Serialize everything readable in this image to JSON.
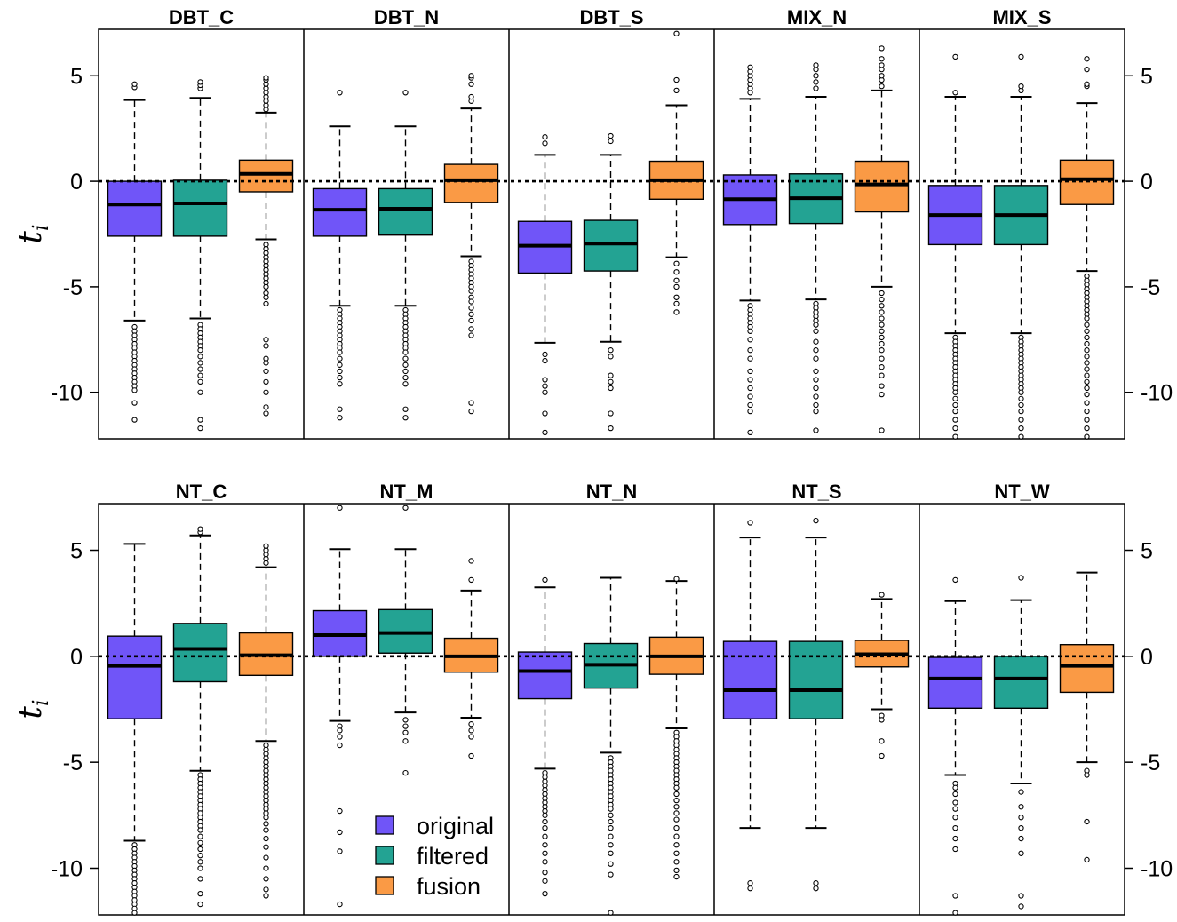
{
  "chart_data": {
    "type": "boxplot",
    "y_axis_label": "t",
    "y_axis_label_subscript": "i",
    "ylim": [
      -12.2,
      7.2
    ],
    "y_ticks": [
      5,
      0,
      -5,
      -10
    ],
    "reference_line": 0,
    "legend": {
      "position": "bottom-left of lower row",
      "entries": [
        {
          "name": "original",
          "color": "#7055F8"
        },
        {
          "name": "filtered",
          "color": "#23A393"
        },
        {
          "name": "fusion",
          "color": "#FA9A45"
        }
      ]
    },
    "series_colors": {
      "original": "#7055F8",
      "filtered": "#23A393",
      "fusion": "#FA9A45"
    },
    "panels": [
      {
        "title": "DBT_C",
        "boxes": [
          {
            "series": "original",
            "q1": -2.6,
            "median": -1.1,
            "q3": 0.0,
            "wlo": -6.6,
            "whi": 3.85,
            "outliers": [
              4.45,
              4.6,
              -6.9,
              -7.1,
              -7.3,
              -7.5,
              -7.7,
              -7.9,
              -8.1,
              -8.3,
              -8.5,
              -8.7,
              -8.9,
              -9.1,
              -9.3,
              -9.5,
              -9.7,
              -9.9,
              -10.5,
              -11.3
            ]
          },
          {
            "series": "filtered",
            "q1": -2.6,
            "median": -1.05,
            "q3": 0.05,
            "wlo": -6.5,
            "whi": 3.95,
            "outliers": [
              4.4,
              4.55,
              4.7,
              -6.8,
              -7.0,
              -7.2,
              -7.4,
              -7.6,
              -7.8,
              -8.0,
              -8.3,
              -8.6,
              -8.9,
              -9.2,
              -9.5,
              -10.0,
              -11.3,
              -11.7
            ]
          },
          {
            "series": "fusion",
            "q1": -0.5,
            "median": 0.35,
            "q3": 1.0,
            "wlo": -2.75,
            "whi": 3.25,
            "outliers": [
              3.4,
              3.6,
              3.8,
              4.0,
              4.2,
              4.4,
              4.6,
              4.8,
              4.9,
              -3.0,
              -3.2,
              -3.4,
              -3.6,
              -3.8,
              -4.0,
              -4.2,
              -4.4,
              -4.6,
              -4.8,
              -5.0,
              -5.3,
              -5.5,
              -5.8,
              -7.5,
              -7.8,
              -8.4,
              -8.6,
              -9.0,
              -9.5,
              -10.0,
              -10.7,
              -11.0
            ]
          }
        ]
      },
      {
        "title": "DBT_N",
        "boxes": [
          {
            "series": "original",
            "q1": -2.6,
            "median": -1.35,
            "q3": -0.35,
            "wlo": -5.9,
            "whi": 2.6,
            "outliers": [
              4.2,
              -6.1,
              -6.3,
              -6.5,
              -6.7,
              -6.9,
              -7.1,
              -7.3,
              -7.5,
              -7.7,
              -7.9,
              -8.1,
              -8.4,
              -8.7,
              -9.0,
              -9.3,
              -9.6,
              -10.8,
              -11.2
            ]
          },
          {
            "series": "filtered",
            "q1": -2.55,
            "median": -1.3,
            "q3": -0.35,
            "wlo": -5.9,
            "whi": 2.6,
            "outliers": [
              4.2,
              -6.1,
              -6.3,
              -6.5,
              -6.7,
              -6.9,
              -7.1,
              -7.3,
              -7.5,
              -7.7,
              -7.9,
              -8.1,
              -8.4,
              -8.7,
              -9.0,
              -9.3,
              -9.6,
              -10.8,
              -11.2
            ]
          },
          {
            "series": "fusion",
            "q1": -1.0,
            "median": 0.05,
            "q3": 0.8,
            "wlo": -3.55,
            "whi": 3.45,
            "outliers": [
              3.8,
              4.0,
              4.6,
              4.9,
              5.0,
              -3.8,
              -4.0,
              -4.2,
              -4.4,
              -4.6,
              -4.8,
              -5.0,
              -5.2,
              -5.5,
              -5.7,
              -6.0,
              -6.3,
              -6.6,
              -7.0,
              -7.3,
              -10.5,
              -10.9
            ]
          }
        ]
      },
      {
        "title": "DBT_S",
        "boxes": [
          {
            "series": "original",
            "q1": -4.35,
            "median": -3.05,
            "q3": -1.9,
            "wlo": -7.65,
            "whi": 1.25,
            "outliers": [
              1.8,
              2.1,
              -8.2,
              -8.5,
              -9.4,
              -9.7,
              -10.0,
              -11.0,
              -11.9
            ]
          },
          {
            "series": "filtered",
            "q1": -4.25,
            "median": -2.95,
            "q3": -1.85,
            "wlo": -7.6,
            "whi": 1.25,
            "outliers": [
              1.9,
              2.15,
              -8.0,
              -8.3,
              -9.2,
              -9.5,
              -9.8,
              -11.0,
              -11.7
            ]
          },
          {
            "series": "fusion",
            "q1": -0.85,
            "median": 0.05,
            "q3": 0.95,
            "wlo": -3.6,
            "whi": 3.6,
            "outliers": [
              4.3,
              4.8,
              7.0,
              -3.9,
              -4.3,
              -4.7,
              -5.0,
              -5.5,
              -5.8,
              -6.2
            ]
          }
        ]
      },
      {
        "title": "MIX_N",
        "boxes": [
          {
            "series": "original",
            "q1": -2.05,
            "median": -0.85,
            "q3": 0.3,
            "wlo": -5.65,
            "whi": 3.9,
            "outliers": [
              4.2,
              4.4,
              4.6,
              4.8,
              5.0,
              5.2,
              5.4,
              -5.9,
              -6.1,
              -6.3,
              -6.5,
              -6.7,
              -6.9,
              -7.1,
              -7.5,
              -8.0,
              -8.4,
              -9.0,
              -9.4,
              -9.8,
              -10.2,
              -10.6,
              -10.9,
              -11.9
            ]
          },
          {
            "series": "filtered",
            "q1": -2.0,
            "median": -0.8,
            "q3": 0.35,
            "wlo": -5.6,
            "whi": 4.0,
            "outliers": [
              4.4,
              4.7,
              5.0,
              5.3,
              5.5,
              -5.8,
              -6.0,
              -6.2,
              -6.4,
              -6.6,
              -6.8,
              -7.1,
              -7.6,
              -8.0,
              -8.4,
              -9.0,
              -9.4,
              -9.8,
              -10.2,
              -10.6,
              -10.9,
              -11.8
            ]
          },
          {
            "series": "fusion",
            "q1": -1.45,
            "median": -0.15,
            "q3": 0.95,
            "wlo": -5.0,
            "whi": 4.3,
            "outliers": [
              4.5,
              4.8,
              5.0,
              5.3,
              5.5,
              5.8,
              6.3,
              -5.3,
              -5.6,
              -5.9,
              -6.2,
              -6.5,
              -6.8,
              -7.1,
              -7.4,
              -7.7,
              -8.0,
              -8.4,
              -8.8,
              -9.2,
              -9.7,
              -10.1,
              -11.8
            ]
          }
        ]
      },
      {
        "title": "MIX_S",
        "boxes": [
          {
            "series": "original",
            "q1": -3.0,
            "median": -1.6,
            "q3": -0.2,
            "wlo": -7.2,
            "whi": 4.0,
            "outliers": [
              4.2,
              5.9,
              -7.4,
              -7.6,
              -7.8,
              -8.0,
              -8.2,
              -8.4,
              -8.6,
              -8.8,
              -9.0,
              -9.2,
              -9.4,
              -9.6,
              -9.8,
              -10.0,
              -10.3,
              -10.6,
              -10.9,
              -11.3,
              -11.7,
              -12.1
            ]
          },
          {
            "series": "filtered",
            "q1": -3.0,
            "median": -1.6,
            "q3": -0.2,
            "wlo": -7.2,
            "whi": 4.0,
            "outliers": [
              4.3,
              4.5,
              5.9,
              -7.4,
              -7.6,
              -7.8,
              -8.0,
              -8.2,
              -8.4,
              -8.6,
              -8.8,
              -9.0,
              -9.2,
              -9.4,
              -9.6,
              -9.8,
              -10.0,
              -10.3,
              -10.6,
              -10.9,
              -11.3,
              -11.7,
              -12.1
            ]
          },
          {
            "series": "fusion",
            "q1": -1.1,
            "median": 0.1,
            "q3": 1.0,
            "wlo": -4.25,
            "whi": 3.7,
            "outliers": [
              4.5,
              4.6,
              5.3,
              5.8,
              -4.5,
              -4.7,
              -4.9,
              -5.1,
              -5.3,
              -5.5,
              -5.7,
              -5.9,
              -6.1,
              -6.3,
              -6.5,
              -6.8,
              -7.1,
              -7.4,
              -7.7,
              -8.0,
              -8.3,
              -8.6,
              -8.9,
              -9.2,
              -9.5,
              -9.8,
              -10.1,
              -10.5,
              -10.9,
              -11.3,
              -11.7,
              -12.1
            ]
          }
        ]
      },
      {
        "title": "NT_C",
        "boxes": [
          {
            "series": "original",
            "q1": -2.95,
            "median": -0.45,
            "q3": 0.95,
            "wlo": -8.7,
            "whi": 5.3,
            "outliers": [
              -8.9,
              -9.1,
              -9.3,
              -9.5,
              -9.7,
              -9.9,
              -10.1,
              -10.3,
              -10.5,
              -10.7,
              -10.9,
              -11.1,
              -11.3,
              -11.5,
              -11.7,
              -11.9,
              -12.1
            ]
          },
          {
            "series": "filtered",
            "q1": -1.2,
            "median": 0.35,
            "q3": 1.55,
            "wlo": -5.4,
            "whi": 5.7,
            "outliers": [
              5.85,
              6.0,
              -5.6,
              -5.8,
              -6.0,
              -6.2,
              -6.4,
              -6.6,
              -6.8,
              -7.0,
              -7.2,
              -7.4,
              -7.6,
              -7.8,
              -8.0,
              -8.2,
              -8.5,
              -8.8,
              -9.1,
              -9.4,
              -9.7,
              -10.0,
              -10.5,
              -11.2,
              -11.7
            ]
          },
          {
            "series": "fusion",
            "q1": -0.9,
            "median": 0.05,
            "q3": 1.1,
            "wlo": -4.0,
            "whi": 4.2,
            "outliers": [
              4.4,
              4.6,
              4.8,
              5.0,
              5.2,
              -4.2,
              -4.4,
              -4.6,
              -4.8,
              -5.0,
              -5.2,
              -5.4,
              -5.6,
              -5.8,
              -6.0,
              -6.2,
              -6.4,
              -6.6,
              -6.8,
              -7.0,
              -7.2,
              -7.4,
              -7.6,
              -7.9,
              -8.2,
              -8.6,
              -9.0,
              -9.5,
              -10.0,
              -10.5,
              -11.0,
              -11.3
            ]
          }
        ]
      },
      {
        "title": "NT_M",
        "boxes": [
          {
            "series": "original",
            "q1": 0.0,
            "median": 1.0,
            "q3": 2.15,
            "wlo": -3.05,
            "whi": 5.05,
            "outliers": [
              7.0,
              -3.3,
              -3.5,
              -3.8,
              -4.2,
              -7.3,
              -8.3,
              -9.2,
              -11.7
            ]
          },
          {
            "series": "filtered",
            "q1": 0.15,
            "median": 1.1,
            "q3": 2.2,
            "wlo": -2.65,
            "whi": 5.05,
            "outliers": [
              7.0,
              -3.0,
              -3.3,
              -3.6,
              -4.0,
              -5.5
            ]
          },
          {
            "series": "fusion",
            "q1": -0.75,
            "median": 0.0,
            "q3": 0.85,
            "wlo": -2.9,
            "whi": 3.1,
            "outliers": [
              3.6,
              4.5,
              -3.2,
              -3.5,
              -3.8,
              -4.7
            ]
          }
        ]
      },
      {
        "title": "NT_N",
        "boxes": [
          {
            "series": "original",
            "q1": -2.0,
            "median": -0.7,
            "q3": 0.2,
            "wlo": -5.3,
            "whi": 3.25,
            "outliers": [
              3.6,
              -5.5,
              -5.7,
              -5.9,
              -6.1,
              -6.3,
              -6.5,
              -6.7,
              -6.9,
              -7.1,
              -7.3,
              -7.5,
              -7.8,
              -8.1,
              -8.5,
              -8.9,
              -9.3,
              -9.7,
              -10.2,
              -10.6,
              -11.2
            ]
          },
          {
            "series": "filtered",
            "q1": -1.5,
            "median": -0.4,
            "q3": 0.6,
            "wlo": -4.55,
            "whi": 3.7,
            "outliers": [
              -4.8,
              -5.0,
              -5.2,
              -5.4,
              -5.6,
              -5.8,
              -6.0,
              -6.2,
              -6.4,
              -6.6,
              -6.8,
              -7.0,
              -7.2,
              -7.5,
              -7.8,
              -8.1,
              -8.5,
              -8.9,
              -9.3,
              -9.8,
              -10.3,
              -12.1
            ]
          },
          {
            "series": "fusion",
            "q1": -0.85,
            "median": 0.0,
            "q3": 0.9,
            "wlo": -3.4,
            "whi": 3.55,
            "outliers": [
              3.65,
              -3.6,
              -3.8,
              -4.0,
              -4.2,
              -4.4,
              -4.6,
              -4.8,
              -5.0,
              -5.2,
              -5.4,
              -5.6,
              -5.8,
              -6.0,
              -6.2,
              -6.5,
              -6.8,
              -7.1,
              -7.4,
              -7.7,
              -8.1,
              -8.5,
              -8.9,
              -9.3,
              -9.7,
              -10.1,
              -10.4
            ]
          }
        ]
      },
      {
        "title": "NT_S",
        "boxes": [
          {
            "series": "original",
            "q1": -2.95,
            "median": -1.6,
            "q3": 0.7,
            "wlo": -8.1,
            "whi": 5.6,
            "outliers": [
              6.3,
              -10.7,
              -10.95
            ]
          },
          {
            "series": "filtered",
            "q1": -2.95,
            "median": -1.6,
            "q3": 0.7,
            "wlo": -8.1,
            "whi": 5.6,
            "outliers": [
              6.4,
              -10.7,
              -10.95
            ]
          },
          {
            "series": "fusion",
            "q1": -0.5,
            "median": 0.1,
            "q3": 0.75,
            "wlo": -2.5,
            "whi": 2.7,
            "outliers": [
              2.9,
              -2.8,
              -3.0,
              -4.0,
              -4.7
            ]
          }
        ]
      },
      {
        "title": "NT_W",
        "boxes": [
          {
            "series": "original",
            "q1": -2.45,
            "median": -1.05,
            "q3": -0.05,
            "wlo": -5.6,
            "whi": 2.6,
            "outliers": [
              3.6,
              -6.0,
              -6.2,
              -6.5,
              -6.9,
              -7.2,
              -7.6,
              -8.1,
              -8.6,
              -9.1,
              -11.3,
              -12.1
            ]
          },
          {
            "series": "filtered",
            "q1": -2.45,
            "median": -1.05,
            "q3": 0.0,
            "wlo": -6.0,
            "whi": 2.65,
            "outliers": [
              3.7,
              -6.4,
              -7.1,
              -7.6,
              -8.1,
              -8.6,
              -9.3,
              -11.3,
              -11.8
            ]
          },
          {
            "series": "fusion",
            "q1": -1.7,
            "median": -0.45,
            "q3": 0.55,
            "wlo": -5.0,
            "whi": 3.95,
            "outliers": [
              -5.4,
              -5.6,
              -7.8,
              -9.6
            ]
          }
        ]
      }
    ]
  }
}
